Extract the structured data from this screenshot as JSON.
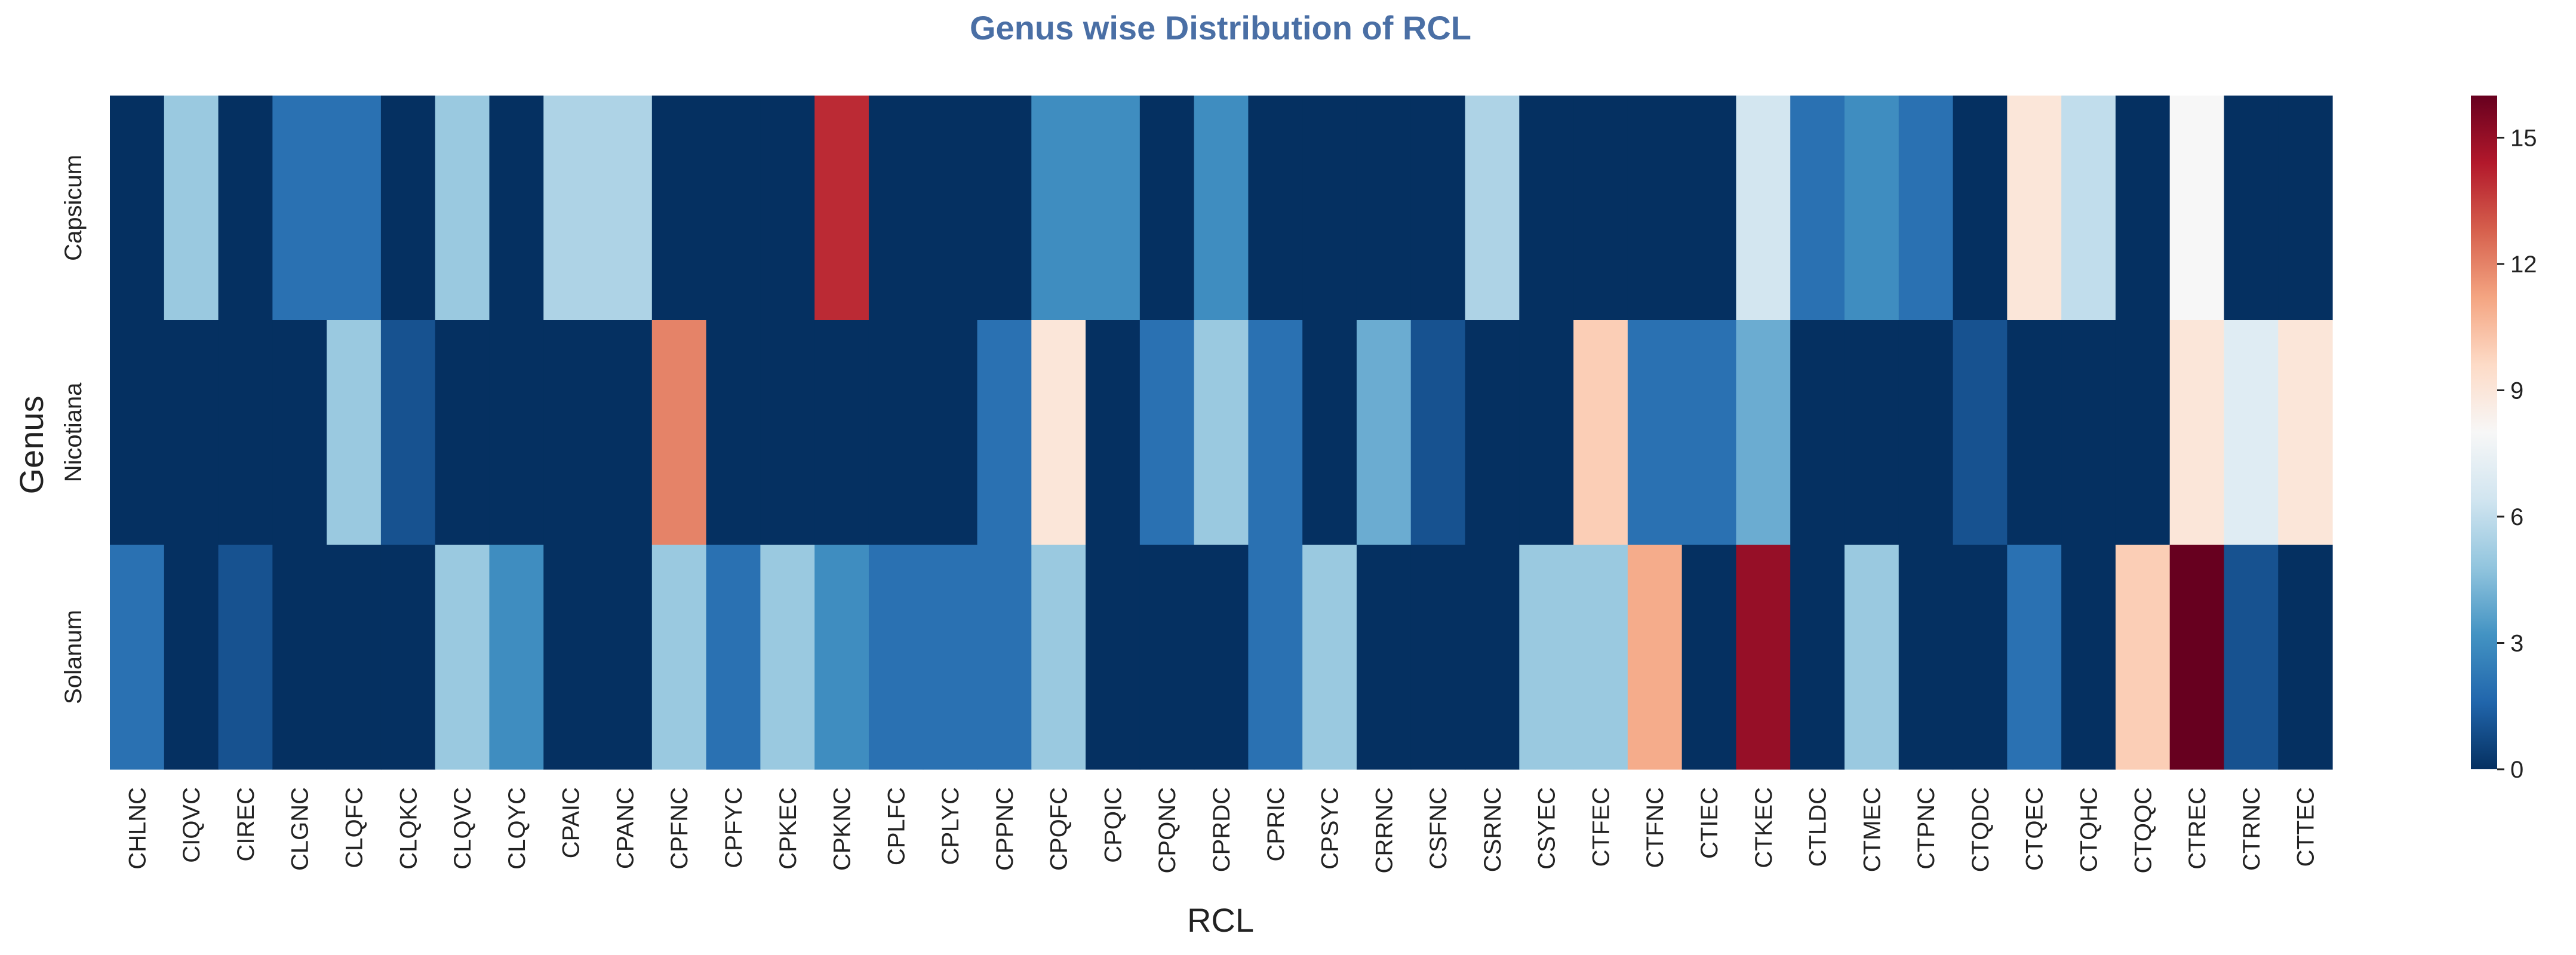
{
  "chart_data": {
    "type": "heatmap",
    "title": "Genus wise Distribution of RCL",
    "xlabel": "RCL",
    "ylabel": "Genus",
    "rows": [
      "Capsicum",
      "Nicotiana",
      "Solanum"
    ],
    "columns": [
      "CHLNC",
      "CIQVC",
      "CIREC",
      "CLGNC",
      "CLQFC",
      "CLQKC",
      "CLQVC",
      "CLQYC",
      "CPAIC",
      "CPANC",
      "CPFNC",
      "CPFYC",
      "CPKEC",
      "CPKNC",
      "CPLFC",
      "CPLYC",
      "CPPNC",
      "CPQFC",
      "CPQIC",
      "CPQNC",
      "CPRDC",
      "CPRIC",
      "CPSYC",
      "CRRNC",
      "CSFNC",
      "CSRNC",
      "CSYEC",
      "CTFEC",
      "CTFNC",
      "CTIEC",
      "CTKEC",
      "CTLDC",
      "CTMEC",
      "CTPNC",
      "CTQDC",
      "CTQEC",
      "CTQHC",
      "CTQQC",
      "CTREC",
      "CTRNC",
      "CTTEC"
    ],
    "values": [
      [
        0,
        5,
        0,
        2,
        2,
        0,
        5,
        0,
        5.5,
        5.5,
        0,
        0,
        0,
        14,
        0,
        0,
        0,
        3,
        3,
        0,
        3,
        0,
        0,
        0,
        0,
        5.5,
        0,
        0,
        0,
        0,
        6.5,
        2,
        3,
        2,
        0,
        9,
        6,
        0,
        8,
        0,
        0
      ],
      [
        0,
        0,
        0,
        0,
        5,
        1,
        0,
        0,
        0,
        0,
        12,
        0,
        0,
        0,
        0,
        0,
        2,
        9,
        0,
        2,
        5,
        2,
        0,
        4,
        1,
        0,
        0,
        10,
        2,
        2,
        4,
        0,
        0,
        0,
        1,
        0,
        0,
        0,
        9,
        7,
        9
      ],
      [
        2,
        0,
        1,
        0,
        0,
        0,
        5,
        3,
        0,
        0,
        5,
        2,
        5,
        3,
        2,
        2,
        2,
        5,
        0,
        0,
        0,
        2,
        5,
        0,
        0,
        0,
        5,
        5,
        11,
        0,
        15,
        0,
        5,
        0,
        0,
        2,
        0,
        10,
        16,
        1,
        0
      ]
    ],
    "colorbar": {
      "min": 0,
      "max": 16,
      "ticks": [
        0,
        3,
        6,
        9,
        12,
        15
      ],
      "colormap": "RdBu_r",
      "stops": [
        "#053061",
        "#2166ac",
        "#4393c3",
        "#92c5de",
        "#d1e5f0",
        "#f7f7f7",
        "#fddbc7",
        "#f4a582",
        "#d6604d",
        "#b2182b",
        "#67001f"
      ]
    },
    "grid": false
  }
}
